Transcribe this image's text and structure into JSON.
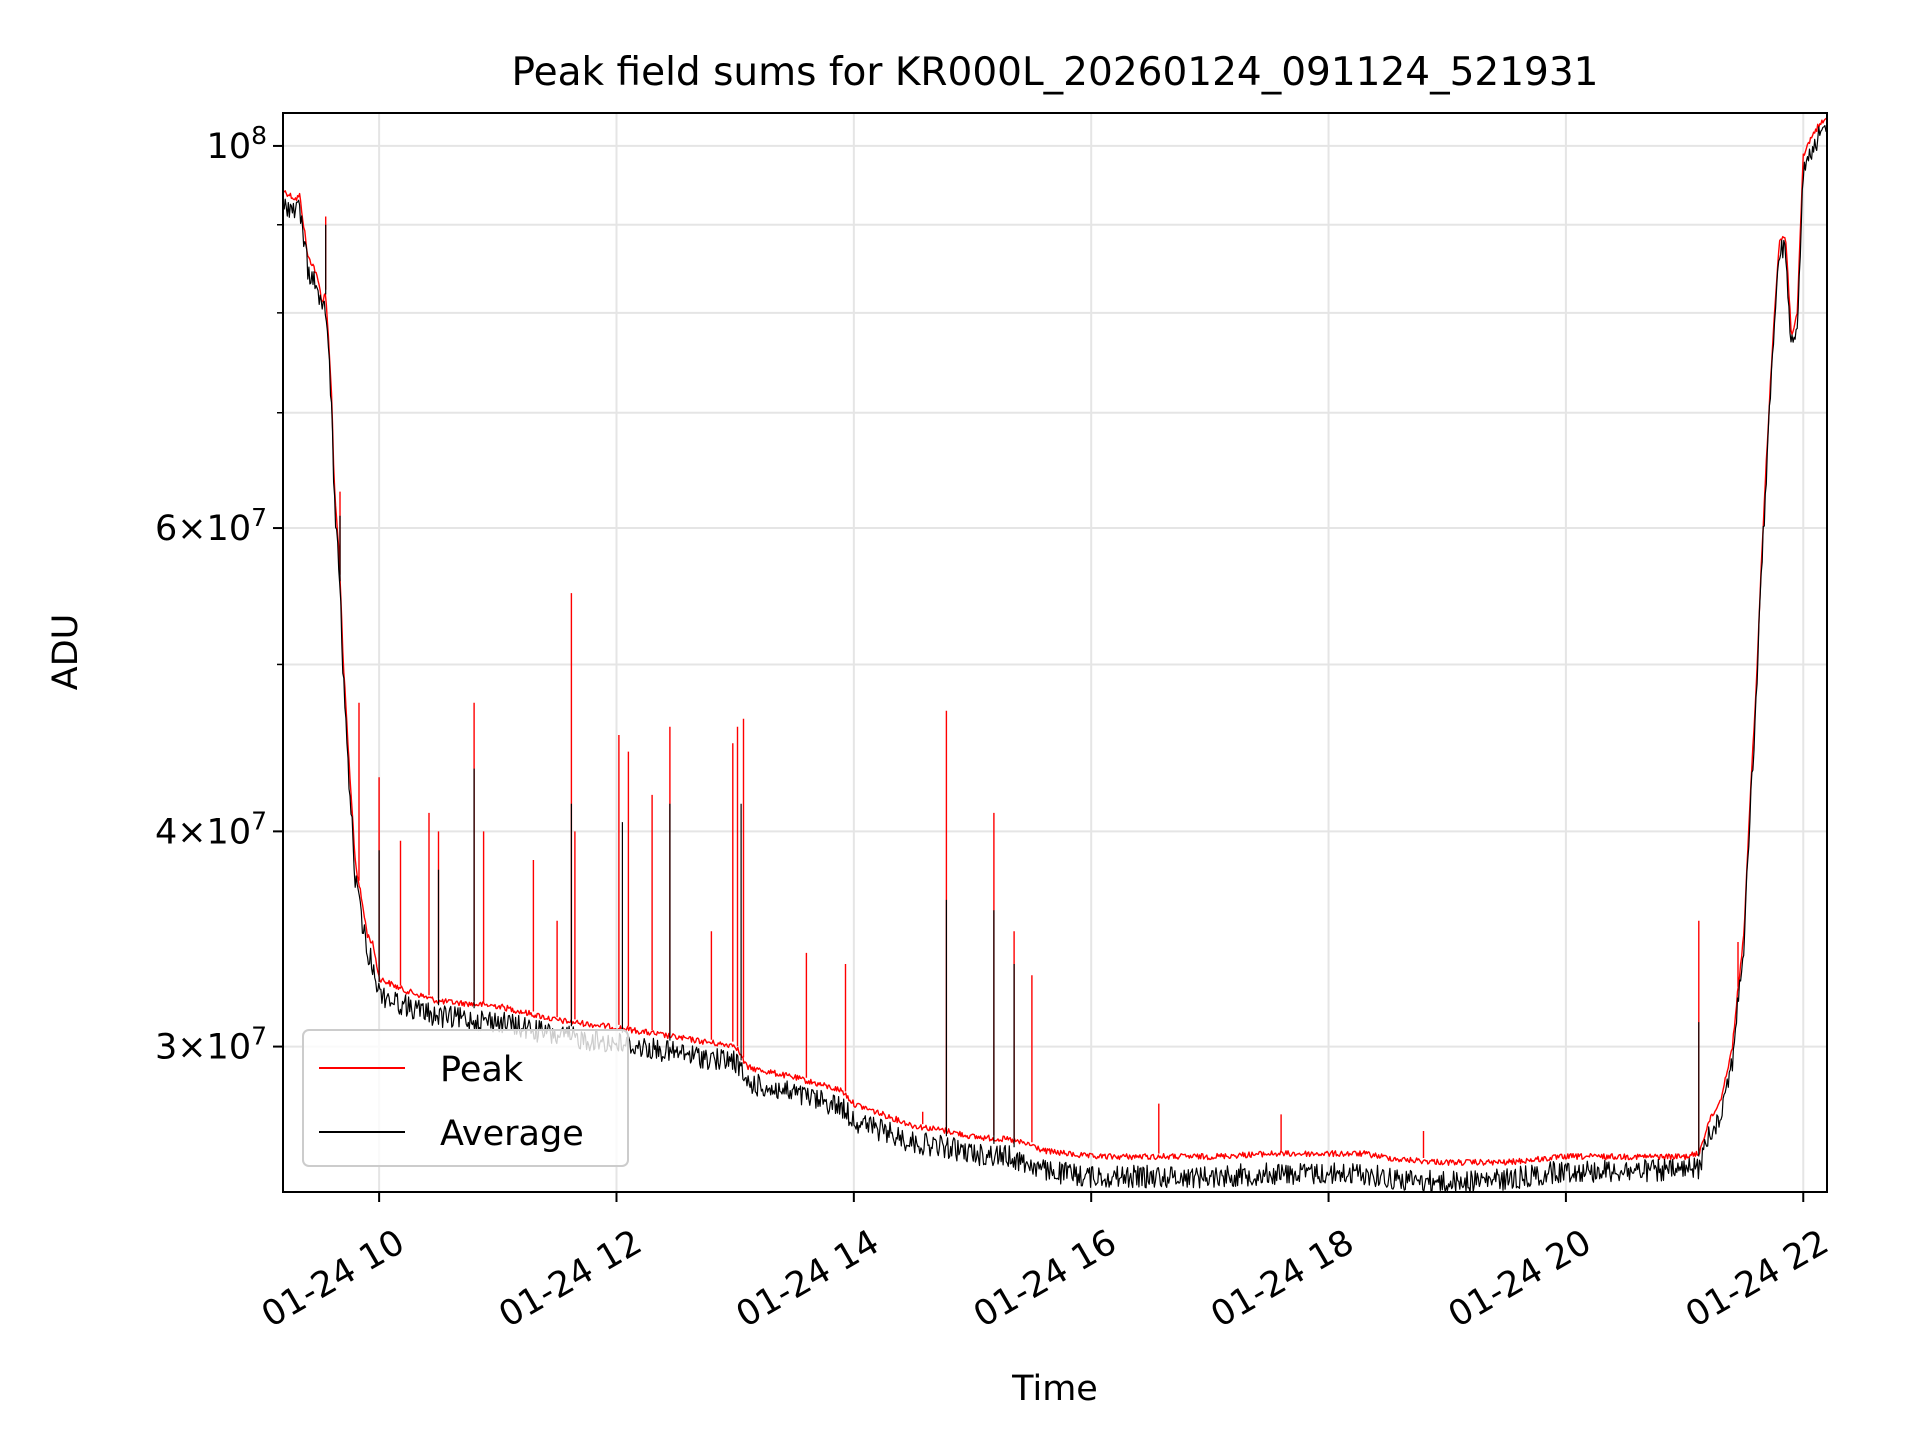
{
  "chart_data": {
    "type": "line",
    "title": "Peak field sums for KR000L_20260124_091124_521931",
    "xlabel": "Time",
    "ylabel": "ADU",
    "yscale": "log",
    "grid": true,
    "legend_position": "lower-left",
    "x_units": "hours since 01-24 00:00",
    "xlim": [
      9.19,
      22.2
    ],
    "ylim": [
      24700000,
      104500000
    ],
    "x_ticks": [
      {
        "value": 10,
        "label": "01-24 10"
      },
      {
        "value": 12,
        "label": "01-24 12"
      },
      {
        "value": 14,
        "label": "01-24 14"
      },
      {
        "value": 16,
        "label": "01-24 16"
      },
      {
        "value": 18,
        "label": "01-24 18"
      },
      {
        "value": 20,
        "label": "01-24 20"
      },
      {
        "value": 22,
        "label": "01-24 22"
      }
    ],
    "y_ticks": [
      {
        "value": 30000000,
        "mantissa": "3",
        "exponent": "7"
      },
      {
        "value": 40000000,
        "mantissa": "4",
        "exponent": "7"
      },
      {
        "value": 60000000,
        "mantissa": "6",
        "exponent": "7"
      },
      {
        "value": 100000000,
        "mantissa": "",
        "exponent": "8"
      }
    ],
    "y_minor_ticks": [
      50000000,
      70000000,
      80000000,
      90000000
    ],
    "series": [
      {
        "name": "Peak",
        "color": "#ff0000",
        "x": [
          9.2,
          9.3,
          9.33,
          9.4,
          9.45,
          9.5,
          9.52,
          9.55,
          9.6,
          9.62,
          9.66,
          9.7,
          9.75,
          9.8,
          9.9,
          9.95,
          10.0,
          10.2,
          10.5,
          11.0,
          11.5,
          12.0,
          12.5,
          12.9,
          13.0,
          13.1,
          13.5,
          13.9,
          14.0,
          14.5,
          14.8,
          15.0,
          15.3,
          15.5,
          15.6,
          16.0,
          16.5,
          17.0,
          17.5,
          18.0,
          18.3,
          18.6,
          19.0,
          19.5,
          20.0,
          20.5,
          21.0,
          21.12,
          21.2,
          21.3,
          21.4,
          21.5,
          21.6,
          21.65,
          21.7,
          21.75,
          21.8,
          21.85,
          21.9,
          21.95,
          22.0,
          22.05,
          22.1,
          22.15,
          22.2
        ],
        "y": [
          94500000,
          93500000,
          94000000,
          86500000,
          85500000,
          83000000,
          81500000,
          82500000,
          72000000,
          64000000,
          58500000,
          50000000,
          43500000,
          38500000,
          35000000,
          34500000,
          33000000,
          32500000,
          32000000,
          31800000,
          31200000,
          30900000,
          30500000,
          30200000,
          30200000,
          29300000,
          28900000,
          28400000,
          27900000,
          27100000,
          26900000,
          26700000,
          26600000,
          26400000,
          26200000,
          26000000,
          26000000,
          26000000,
          26100000,
          26100000,
          26100000,
          25900000,
          25800000,
          25800000,
          26000000,
          26000000,
          26000000,
          26100000,
          27200000,
          28000000,
          30000000,
          35000000,
          48000000,
          58000000,
          68000000,
          79000000,
          88500000,
          89000000,
          78000000,
          80000000,
          99000000,
          101000000,
          102500000,
          103500000,
          104000000
        ]
      },
      {
        "name": "Average",
        "color": "#000000",
        "x": [
          9.2,
          9.3,
          9.33,
          9.4,
          9.45,
          9.5,
          9.52,
          9.55,
          9.6,
          9.62,
          9.66,
          9.7,
          9.75,
          9.8,
          9.9,
          9.95,
          10.0,
          10.2,
          10.5,
          11.0,
          11.5,
          12.0,
          12.5,
          12.9,
          13.0,
          13.1,
          13.5,
          13.9,
          14.0,
          14.5,
          14.8,
          15.0,
          15.3,
          15.5,
          15.6,
          16.0,
          16.5,
          17.0,
          17.5,
          18.0,
          18.3,
          18.6,
          19.0,
          19.5,
          20.0,
          20.5,
          21.0,
          21.12,
          21.2,
          21.3,
          21.4,
          21.5,
          21.6,
          21.65,
          21.7,
          21.75,
          21.8,
          21.85,
          21.9,
          21.95,
          22.0,
          22.05,
          22.1,
          22.15,
          22.2
        ],
        "y": [
          94000000,
          93000000,
          93500000,
          86000000,
          85000000,
          82500000,
          81000000,
          82000000,
          71500000,
          63500000,
          58000000,
          49500000,
          43000000,
          38000000,
          34500000,
          34000000,
          32700000,
          32200000,
          31700000,
          31500000,
          30900000,
          30600000,
          30200000,
          29900000,
          29900000,
          29000000,
          28600000,
          28100000,
          27600000,
          26800000,
          26600000,
          26400000,
          26300000,
          26000000,
          25800000,
          25600000,
          25600000,
          25600000,
          25700000,
          25700000,
          25700000,
          25500000,
          25400000,
          25500000,
          25800000,
          25800000,
          25800000,
          25900000,
          27000000,
          27800000,
          29800000,
          34800000,
          47700000,
          57700000,
          67700000,
          78700000,
          88000000,
          88500000,
          77500000,
          79500000,
          98500000,
          100500000,
          102000000,
          103000000,
          103500000
        ]
      }
    ],
    "peak_spikes": [
      [
        9.55,
        91000000
      ],
      [
        9.67,
        63000000
      ],
      [
        9.83,
        47500000
      ],
      [
        10.0,
        43000000
      ],
      [
        10.18,
        39500000
      ],
      [
        10.42,
        41000000
      ],
      [
        10.5,
        40000000
      ],
      [
        10.8,
        47500000
      ],
      [
        10.88,
        40000000
      ],
      [
        11.3,
        38500000
      ],
      [
        11.5,
        35500000
      ],
      [
        11.62,
        55000000
      ],
      [
        11.65,
        40000000
      ],
      [
        12.02,
        45500000
      ],
      [
        12.1,
        44500000
      ],
      [
        12.3,
        42000000
      ],
      [
        12.45,
        46000000
      ],
      [
        12.8,
        35000000
      ],
      [
        12.98,
        45000000
      ],
      [
        13.02,
        46000000
      ],
      [
        13.07,
        46500000
      ],
      [
        13.6,
        34000000
      ],
      [
        13.93,
        33500000
      ],
      [
        14.58,
        27500000
      ],
      [
        14.78,
        47000000
      ],
      [
        15.18,
        41000000
      ],
      [
        15.35,
        35000000
      ],
      [
        15.5,
        33000000
      ],
      [
        16.57,
        27800000
      ],
      [
        17.6,
        27400000
      ],
      [
        18.8,
        26800000
      ],
      [
        21.12,
        35500000
      ],
      [
        21.45,
        34500000
      ]
    ],
    "average_spikes": [
      [
        9.55,
        90000000
      ],
      [
        9.67,
        61000000
      ],
      [
        10.0,
        39000000
      ],
      [
        10.5,
        38000000
      ],
      [
        10.8,
        43500000
      ],
      [
        11.62,
        41500000
      ],
      [
        12.05,
        40500000
      ],
      [
        12.45,
        41500000
      ],
      [
        13.05,
        41500000
      ],
      [
        14.78,
        36500000
      ],
      [
        15.18,
        36000000
      ],
      [
        15.35,
        33500000
      ],
      [
        21.12,
        31000000
      ]
    ]
  }
}
